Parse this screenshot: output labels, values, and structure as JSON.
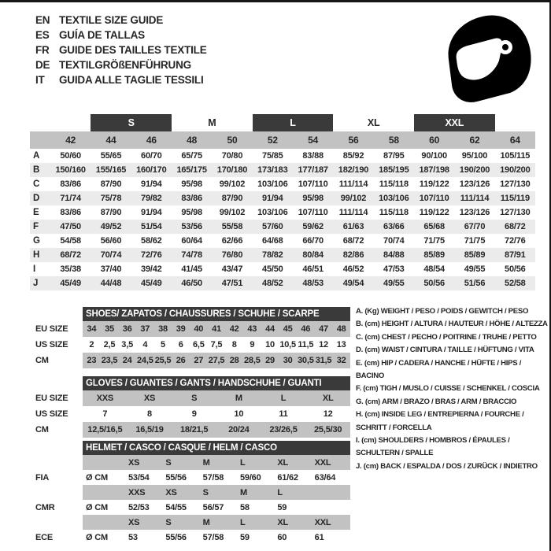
{
  "header": {
    "languages": [
      {
        "code": "EN",
        "title": "TEXTILE SIZE GUIDE"
      },
      {
        "code": "ES",
        "title": "GUÍA DE TALLAS"
      },
      {
        "code": "FR",
        "title": "GUIDE DES TAILLES TEXTILE"
      },
      {
        "code": "DE",
        "title": "TEXTILGRÖßENFÜHRUNG"
      },
      {
        "code": "IT",
        "title": "GUIDA ALLE TAGLIE TESSILI"
      }
    ],
    "icon": "full-face-helmet-icon"
  },
  "main_table": {
    "size_groups": [
      {
        "label": "S",
        "dark": true
      },
      {
        "label": "M",
        "dark": false
      },
      {
        "label": "L",
        "dark": true
      },
      {
        "label": "XL",
        "dark": false
      },
      {
        "label": "XXL",
        "dark": true
      }
    ],
    "columns": [
      "42",
      "44",
      "46",
      "48",
      "50",
      "52",
      "54",
      "56",
      "58",
      "60",
      "62",
      "64"
    ],
    "rows": [
      {
        "letter": "A",
        "values": [
          "50/60",
          "55/65",
          "60/70",
          "65/75",
          "70/80",
          "75/85",
          "83/88",
          "85/92",
          "87/95",
          "90/100",
          "95/100",
          "105/115"
        ]
      },
      {
        "letter": "B",
        "values": [
          "150/160",
          "155/165",
          "160/170",
          "165/175",
          "170/180",
          "173/183",
          "177/187",
          "182/190",
          "185/195",
          "187/198",
          "190/200",
          "190/200"
        ]
      },
      {
        "letter": "C",
        "values": [
          "83/86",
          "87/90",
          "91/94",
          "95/98",
          "99/102",
          "103/106",
          "107/110",
          "111/114",
          "115/118",
          "119/122",
          "123/126",
          "127/130"
        ]
      },
      {
        "letter": "D",
        "values": [
          "71/74",
          "75/78",
          "79/82",
          "83/86",
          "87/90",
          "91/94",
          "95/98",
          "99/102",
          "103/106",
          "107/110",
          "111/114",
          "115/119"
        ]
      },
      {
        "letter": "E",
        "values": [
          "83/86",
          "87/90",
          "91/94",
          "95/98",
          "99/102",
          "103/106",
          "107/110",
          "111/114",
          "115/118",
          "119/122",
          "123/126",
          "127/130"
        ]
      },
      {
        "letter": "F",
        "values": [
          "47/50",
          "49/52",
          "51/54",
          "53/56",
          "55/58",
          "57/60",
          "59/62",
          "61/63",
          "63/66",
          "65/68",
          "67/70",
          "68/72"
        ]
      },
      {
        "letter": "G",
        "values": [
          "54/58",
          "56/60",
          "58/62",
          "60/64",
          "62/66",
          "64/68",
          "66/70",
          "68/72",
          "70/74",
          "71/75",
          "71/75",
          "72/76"
        ]
      },
      {
        "letter": "H",
        "values": [
          "68/72",
          "70/74",
          "72/76",
          "74/78",
          "76/80",
          "78/82",
          "80/84",
          "82/86",
          "84/88",
          "85/89",
          "85/89",
          "87/91"
        ]
      },
      {
        "letter": "I",
        "values": [
          "35/38",
          "37/40",
          "39/42",
          "41/45",
          "43/47",
          "45/50",
          "46/51",
          "46/52",
          "47/53",
          "48/54",
          "49/55",
          "50/56"
        ]
      },
      {
        "letter": "J",
        "values": [
          "45/49",
          "44/48",
          "45/49",
          "46/50",
          "47/51",
          "48/52",
          "48/53",
          "49/54",
          "49/55",
          "50/56",
          "51/56",
          "52/58"
        ]
      }
    ]
  },
  "shoes": {
    "title": "SHOES/ ZAPATOS / CHAUSSURES / SCHUHE / SCARPE",
    "row_labels": [
      "EU SIZE",
      "US SIZE",
      "CM"
    ],
    "eu": [
      "34",
      "35",
      "36",
      "37",
      "38",
      "39",
      "40",
      "41",
      "42",
      "43",
      "44",
      "45",
      "46",
      "47",
      "48"
    ],
    "us": [
      "2",
      "2,5",
      "3,5",
      "4",
      "5",
      "6",
      "6,5",
      "7,5",
      "8",
      "9",
      "10",
      "10,5",
      "11,5",
      "12",
      "13"
    ],
    "cm": [
      "23",
      "23,5",
      "24",
      "24,5",
      "25,5",
      "26",
      "27",
      "27,5",
      "28",
      "28,5",
      "29",
      "30",
      "30,5",
      "31,5",
      "32"
    ]
  },
  "gloves": {
    "title": "GLOVES / GUANTES / GANTS / HANDSCHUHE / GUANTI",
    "row_labels": [
      "EU SIZE",
      "US SIZE",
      "CM"
    ],
    "eu": [
      "XXS",
      "XS",
      "S",
      "M",
      "L",
      "XL"
    ],
    "us": [
      "7",
      "8",
      "9",
      "10",
      "11",
      "12"
    ],
    "cm": [
      "12,5/16,5",
      "16,5/19",
      "18/21,5",
      "20/24",
      "23/26,5",
      "25,5/30"
    ]
  },
  "helmet": {
    "title": "HELMET / CASCO / CASQUE / HELM / CASCO",
    "rows": [
      {
        "label": "FIA",
        "unit": "Ø CM",
        "sizes": [
          "XS",
          "S",
          "M",
          "L",
          "XL",
          "XXL"
        ],
        "values": [
          "53/54",
          "55/56",
          "57/58",
          "59/60",
          "61/62",
          "63/64"
        ]
      },
      {
        "label": "CMR",
        "unit": "Ø CM",
        "sizes": [
          "XXS",
          "XS",
          "S",
          "M",
          "L",
          ""
        ],
        "values": [
          "52/53",
          "54/55",
          "56/57",
          "58",
          "59",
          ""
        ]
      },
      {
        "label": "ECE",
        "unit": "Ø CM",
        "sizes": [
          "XS",
          "S",
          "M",
          "L",
          "XL",
          "XXL"
        ],
        "values": [
          "53",
          "55/56",
          "57/58",
          "59",
          "60",
          "61"
        ]
      }
    ]
  },
  "legend": {
    "items": [
      "A. (Kg) WEIGHT / PESO / POIDS / GEWITCH / PESO",
      "B. (cm) HEIGHT / ALTURA / HAUTEUR / HÖHE / ALTEZZA",
      "C. (cm) CHEST / PECHO / POITRINE / TRUHE / PETTO",
      "D. (cm) WAIST / CINTURA / TAILLE / HÜFTUNG / VITA",
      "E. (cm) HIP / CADERA / HANCHE / HÜFTE / HIPS / BACINO",
      "F. (cm) TIGH / MUSLO / CUISSE / SCHENKEL / COSCIA",
      "G. (cm) ARM / BRAZO / BRAS / ARM / BRACCIO",
      "H. (cm) INSIDE LEG / ENTREPIERNA / FOURCHE / SCHRITT / FORCELLA",
      "I. (cm) SHOULDERS / HOMBROS / ÉPAULES / SCHULTERN / SPALLE",
      "J. (cm) BACK / ESPALDA / DOS / ZURÜCK / INDIETRO"
    ]
  },
  "colors": {
    "dark_bar": "#3a3a3a",
    "gray_band": "#c2c2c2",
    "alt_row": "#ebebeb",
    "text": "#262626",
    "icon": "#000000"
  }
}
